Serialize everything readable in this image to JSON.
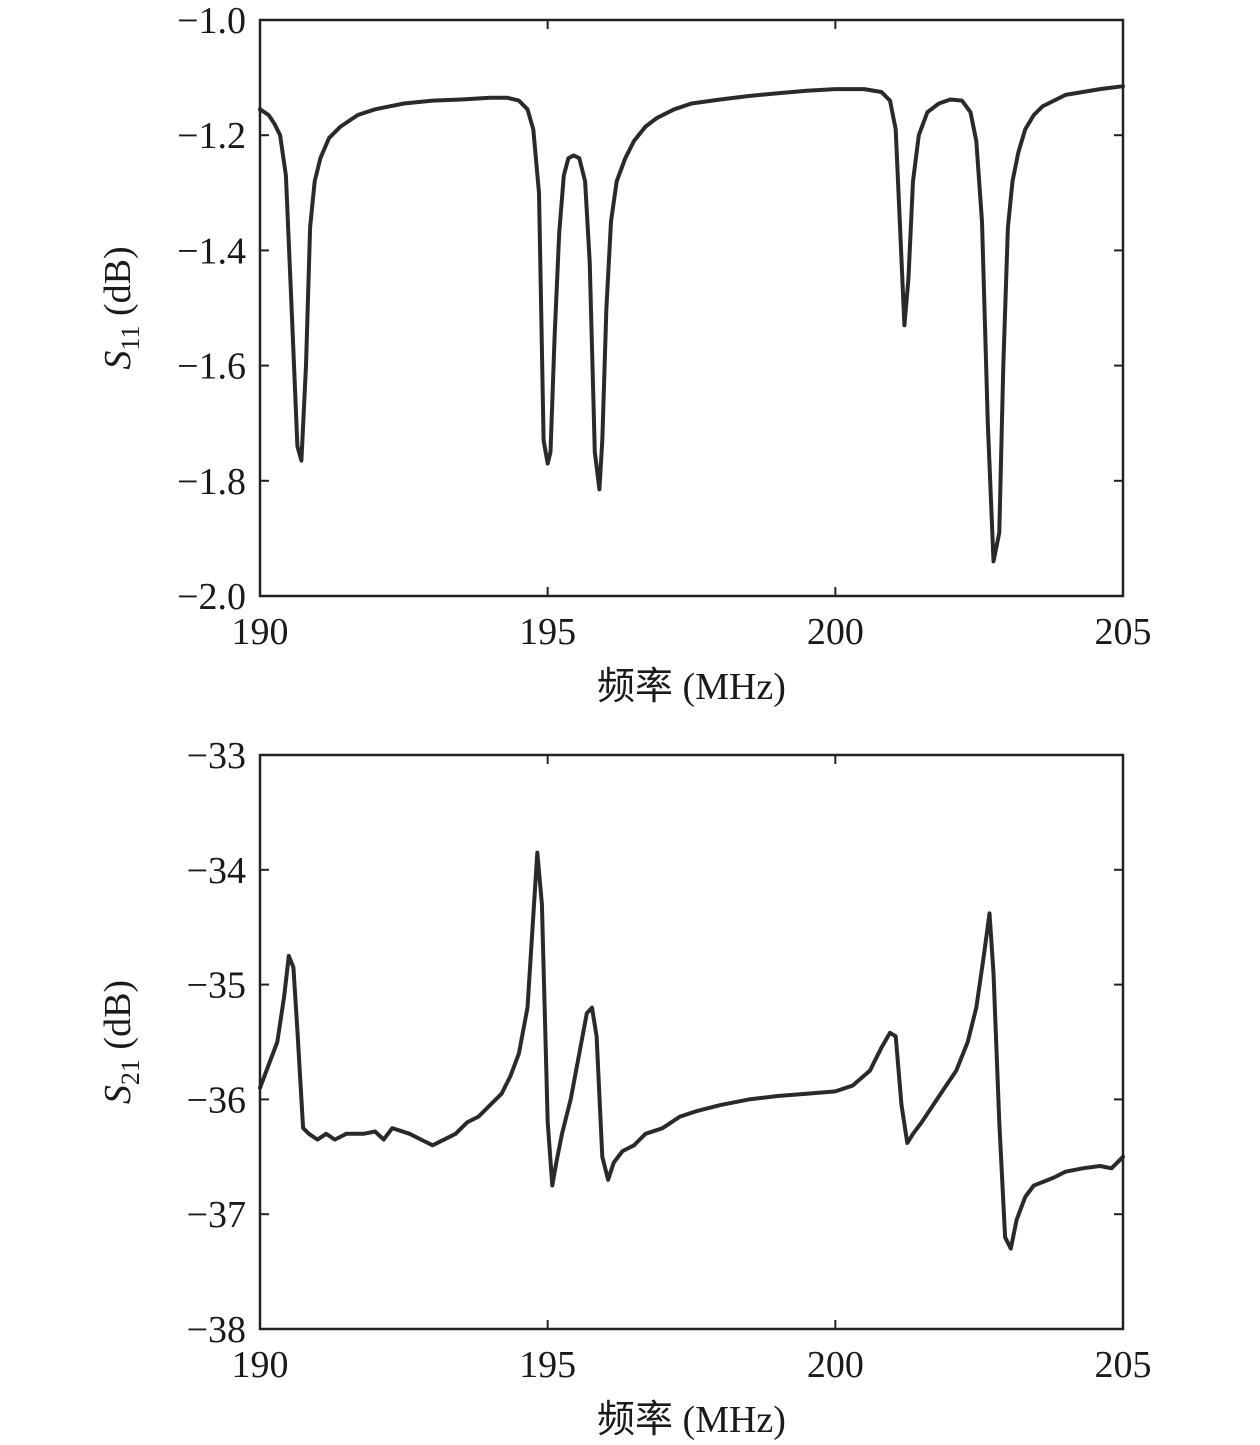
{
  "chart_data": [
    {
      "type": "line",
      "xlabel": "频率 (MHz)",
      "ylabel": {
        "symbol": "S",
        "subscript": "11",
        "unit": "(dB)"
      },
      "xlim": [
        190,
        205
      ],
      "ylim": [
        -2.0,
        -1.0
      ],
      "xticks": [
        190,
        195,
        200,
        205
      ],
      "xtick_labels": [
        "190",
        "195",
        "200",
        "205"
      ],
      "yticks": [
        -2.0,
        -1.8,
        -1.6,
        -1.4,
        -1.2,
        -1.0
      ],
      "ytick_labels": [
        "−2.0",
        "−1.8",
        "−1.6",
        "−1.4",
        "−1.2",
        "−1.0"
      ],
      "grid": false,
      "series": [
        {
          "x": [
            190.0,
            190.15,
            190.25,
            190.35,
            190.45,
            190.55,
            190.65,
            190.72,
            190.8,
            190.87,
            190.95,
            191.05,
            191.2,
            191.4,
            191.7,
            192.0,
            192.5,
            193.0,
            193.5,
            194.0,
            194.3,
            194.5,
            194.65,
            194.75,
            194.85,
            194.93,
            195.0,
            195.05,
            195.12,
            195.2,
            195.28,
            195.36,
            195.45,
            195.55,
            195.65,
            195.73,
            195.82,
            195.9,
            195.95,
            196.02,
            196.1,
            196.2,
            196.35,
            196.5,
            196.7,
            196.9,
            197.2,
            197.5,
            198.0,
            198.5,
            199.0,
            199.5,
            200.0,
            200.5,
            200.8,
            200.95,
            201.05,
            201.12,
            201.2,
            201.27,
            201.35,
            201.45,
            201.6,
            201.8,
            202.0,
            202.2,
            202.35,
            202.45,
            202.55,
            202.65,
            202.75,
            202.85,
            202.92,
            203.0,
            203.08,
            203.18,
            203.3,
            203.45,
            203.6,
            203.8,
            204.0,
            204.3,
            204.6,
            205.0
          ],
          "y": [
            -1.155,
            -1.165,
            -1.18,
            -1.2,
            -1.27,
            -1.5,
            -1.74,
            -1.765,
            -1.6,
            -1.36,
            -1.28,
            -1.24,
            -1.205,
            -1.185,
            -1.165,
            -1.155,
            -1.145,
            -1.14,
            -1.138,
            -1.135,
            -1.135,
            -1.14,
            -1.155,
            -1.19,
            -1.3,
            -1.73,
            -1.77,
            -1.75,
            -1.55,
            -1.37,
            -1.27,
            -1.24,
            -1.235,
            -1.24,
            -1.28,
            -1.42,
            -1.75,
            -1.815,
            -1.73,
            -1.5,
            -1.35,
            -1.28,
            -1.24,
            -1.21,
            -1.185,
            -1.17,
            -1.155,
            -1.145,
            -1.138,
            -1.132,
            -1.127,
            -1.123,
            -1.12,
            -1.12,
            -1.125,
            -1.14,
            -1.19,
            -1.35,
            -1.53,
            -1.45,
            -1.28,
            -1.2,
            -1.16,
            -1.145,
            -1.138,
            -1.14,
            -1.16,
            -1.21,
            -1.35,
            -1.7,
            -1.94,
            -1.89,
            -1.6,
            -1.36,
            -1.28,
            -1.23,
            -1.19,
            -1.165,
            -1.15,
            -1.14,
            -1.13,
            -1.125,
            -1.12,
            -1.115
          ]
        }
      ]
    },
    {
      "type": "line",
      "xlabel": "频率 (MHz)",
      "ylabel": {
        "symbol": "S",
        "subscript": "21",
        "unit": "(dB)"
      },
      "xlim": [
        190,
        205
      ],
      "ylim": [
        -38,
        -33
      ],
      "xticks": [
        190,
        195,
        200,
        205
      ],
      "xtick_labels": [
        "190",
        "195",
        "200",
        "205"
      ],
      "yticks": [
        -38,
        -37,
        -36,
        -35,
        -34,
        -33
      ],
      "ytick_labels": [
        "−38",
        "−37",
        "−36",
        "−35",
        "−34",
        "−33"
      ],
      "grid": false,
      "series": [
        {
          "x": [
            190.0,
            190.15,
            190.3,
            190.42,
            190.5,
            190.58,
            190.65,
            190.75,
            190.85,
            191.0,
            191.15,
            191.3,
            191.5,
            191.8,
            192.0,
            192.15,
            192.3,
            192.6,
            192.8,
            193.0,
            193.2,
            193.4,
            193.6,
            193.8,
            194.0,
            194.2,
            194.35,
            194.5,
            194.65,
            194.75,
            194.82,
            194.9,
            195.0,
            195.08,
            195.15,
            195.25,
            195.4,
            195.55,
            195.68,
            195.77,
            195.85,
            195.95,
            196.05,
            196.15,
            196.3,
            196.5,
            196.7,
            197.0,
            197.3,
            197.6,
            198.0,
            198.5,
            199.0,
            199.5,
            200.0,
            200.3,
            200.6,
            200.8,
            200.95,
            201.05,
            201.15,
            201.25,
            201.35,
            201.5,
            201.7,
            201.9,
            202.1,
            202.3,
            202.45,
            202.58,
            202.68,
            202.75,
            202.85,
            202.95,
            203.05,
            203.15,
            203.3,
            203.45,
            203.6,
            203.8,
            204.0,
            204.3,
            204.6,
            204.8,
            205.0
          ],
          "y": [
            -35.9,
            -35.7,
            -35.5,
            -35.1,
            -34.75,
            -34.85,
            -35.4,
            -36.25,
            -36.3,
            -36.35,
            -36.3,
            -36.35,
            -36.3,
            -36.3,
            -36.28,
            -36.35,
            -36.25,
            -36.3,
            -36.35,
            -36.4,
            -36.35,
            -36.3,
            -36.2,
            -36.15,
            -36.05,
            -35.95,
            -35.8,
            -35.6,
            -35.2,
            -34.4,
            -33.85,
            -34.3,
            -36.2,
            -36.75,
            -36.55,
            -36.3,
            -36.0,
            -35.6,
            -35.25,
            -35.2,
            -35.45,
            -36.5,
            -36.7,
            -36.55,
            -36.45,
            -36.4,
            -36.3,
            -36.25,
            -36.15,
            -36.1,
            -36.05,
            -36.0,
            -35.97,
            -35.95,
            -35.93,
            -35.88,
            -35.75,
            -35.55,
            -35.42,
            -35.45,
            -36.05,
            -36.38,
            -36.3,
            -36.2,
            -36.05,
            -35.9,
            -35.75,
            -35.5,
            -35.2,
            -34.75,
            -34.38,
            -34.9,
            -36.2,
            -37.2,
            -37.3,
            -37.05,
            -36.85,
            -36.75,
            -36.72,
            -36.68,
            -36.63,
            -36.6,
            -36.58,
            -36.6,
            -36.5
          ]
        }
      ]
    }
  ]
}
